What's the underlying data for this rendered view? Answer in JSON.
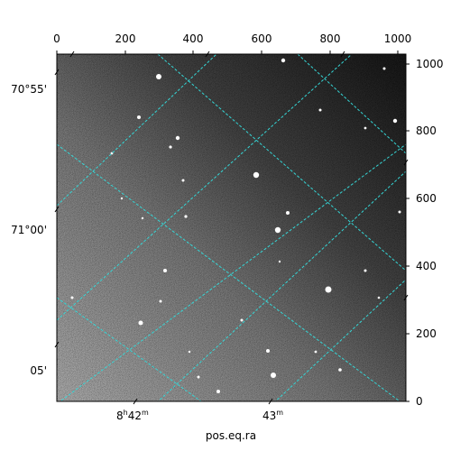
{
  "figure": {
    "xlabel": "pos.eq.ra",
    "top_ticks": [
      "0",
      "200",
      "400",
      "600",
      "800",
      "1000"
    ],
    "right_ticks": [
      "0",
      "200",
      "400",
      "600",
      "800",
      "1000"
    ],
    "left_ticks": [
      "70°55'",
      "71°00'",
      "05'"
    ],
    "bottom_ticks": {
      "t1": {
        "main": "8",
        "sup1": "h",
        "mid": "42",
        "sup2": "m"
      },
      "t2": {
        "main": "43",
        "sup2": "m"
      }
    },
    "grid_color": "#35d6d6",
    "image": "grayscale-star-field"
  }
}
